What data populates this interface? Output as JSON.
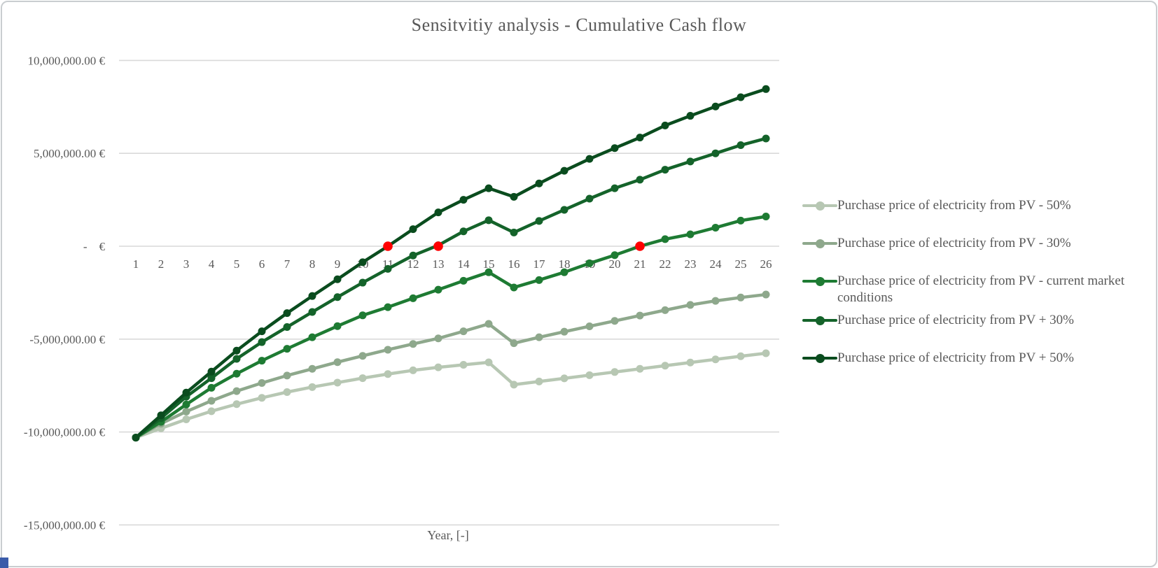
{
  "window": {
    "background": "#ffffff",
    "border_color": "#c9cdd0",
    "corner_artifact_color": "#3a5ba9"
  },
  "chart": {
    "title": "Sensitvitiy analysis - Cumulative Cash flow",
    "x_axis_title": "Year, [-]",
    "text_color": "#595959",
    "grid_color": "#d9d9d9"
  },
  "chart_data": {
    "type": "line",
    "title": "Sensitvitiy analysis - Cumulative Cash flow",
    "xlabel": "Year, [-]",
    "ylabel": "",
    "unit": "EUR (values stored in millions)",
    "grid": "horizontal",
    "legend_position": "right",
    "ylim": [
      -15,
      10
    ],
    "x_categories": [
      1,
      2,
      3,
      4,
      5,
      6,
      7,
      8,
      9,
      10,
      11,
      12,
      13,
      14,
      15,
      16,
      17,
      18,
      19,
      20,
      21,
      22,
      23,
      24,
      25,
      26
    ],
    "y_ticks": [
      {
        "value": 10,
        "label": "10,000,000.00 €"
      },
      {
        "value": 5,
        "label": "5,000,000.00 €"
      },
      {
        "value": 0,
        "label": "-    €"
      },
      {
        "value": -5,
        "label": "-5,000,000.00 €"
      },
      {
        "value": -10,
        "label": "-10,000,000.00 €"
      },
      {
        "value": -15,
        "label": "-15,000,000.00 €"
      }
    ],
    "series": [
      {
        "name": "Purchase price of electricity from PV - 50%",
        "color": "#b7c7b3",
        "values": [
          -10.3,
          -9.8,
          -9.32,
          -8.88,
          -8.5,
          -8.16,
          -7.85,
          -7.58,
          -7.34,
          -7.1,
          -6.88,
          -6.68,
          -6.52,
          -6.38,
          -6.25,
          -7.45,
          -7.28,
          -7.11,
          -6.94,
          -6.77,
          -6.6,
          -6.43,
          -6.26,
          -6.09,
          -5.92,
          -5.76
        ]
      },
      {
        "name": "Purchase price of electricity from PV - 30%",
        "color": "#8ea88c",
        "values": [
          -10.3,
          -9.55,
          -8.9,
          -8.32,
          -7.8,
          -7.36,
          -6.96,
          -6.6,
          -6.24,
          -5.9,
          -5.57,
          -5.26,
          -4.96,
          -4.58,
          -4.18,
          -5.22,
          -4.9,
          -4.6,
          -4.31,
          -4.02,
          -3.73,
          -3.44,
          -3.16,
          -2.94,
          -2.76,
          -2.6
        ]
      },
      {
        "name": "Purchase price of electricity from PV - current market conditions",
        "color": "#1e7b33",
        "values": [
          -10.3,
          -9.45,
          -8.52,
          -7.62,
          -6.86,
          -6.16,
          -5.52,
          -4.9,
          -4.3,
          -3.72,
          -3.28,
          -2.8,
          -2.34,
          -1.86,
          -1.4,
          -2.22,
          -1.82,
          -1.4,
          -0.92,
          -0.48,
          0.0,
          0.38,
          0.64,
          1.0,
          1.38,
          1.6
        ]
      },
      {
        "name": "Purchase price of electricity from PV + 30%",
        "color": "#14632a",
        "values": [
          -10.3,
          -9.25,
          -8.1,
          -7.1,
          -6.06,
          -5.16,
          -4.35,
          -3.54,
          -2.74,
          -1.96,
          -1.22,
          -0.5,
          0.05,
          0.8,
          1.4,
          0.74,
          1.36,
          1.96,
          2.56,
          3.12,
          3.58,
          4.12,
          4.56,
          5.0,
          5.44,
          5.8
        ]
      },
      {
        "name": "Purchase price of electricity from PV + 50%",
        "color": "#0a4c1e",
        "values": [
          -10.3,
          -9.1,
          -7.88,
          -6.75,
          -5.62,
          -4.58,
          -3.6,
          -2.68,
          -1.78,
          -0.86,
          0.0,
          0.92,
          1.82,
          2.5,
          3.12,
          2.66,
          3.38,
          4.06,
          4.7,
          5.28,
          5.85,
          6.5,
          7.02,
          7.52,
          8.02,
          8.46
        ]
      }
    ],
    "breakeven_markers": {
      "color": "#ff0000",
      "points": [
        {
          "series": "Purchase price of electricity from PV + 50%",
          "year": 11,
          "value": 0
        },
        {
          "series": "Purchase price of electricity from PV + 30%",
          "year": 13,
          "value": 0
        },
        {
          "series": "Purchase price of electricity from PV - current market conditions",
          "year": 21,
          "value": 0
        }
      ]
    }
  }
}
